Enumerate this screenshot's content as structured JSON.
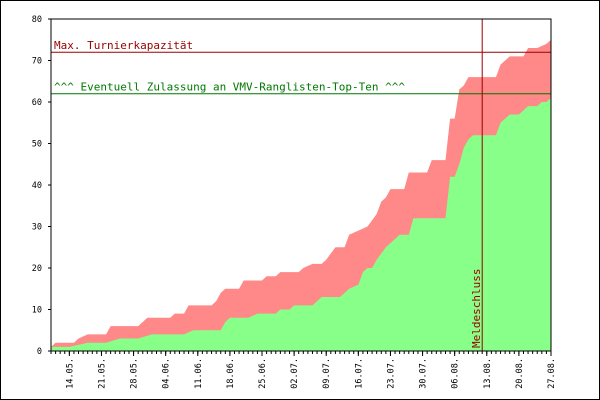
{
  "chart_data": {
    "type": "area",
    "title": "",
    "xlabel": "",
    "ylabel": "",
    "ylim": [
      0,
      80
    ],
    "grid": false,
    "legend": "none",
    "y_ticks": [
      0,
      10,
      20,
      30,
      40,
      50,
      60,
      70,
      80
    ],
    "x_ticks": [
      "14.05.",
      "21.05.",
      "28.05.",
      "04.06.",
      "11.06.",
      "18.06.",
      "25.06.",
      "02.07.",
      "09.07.",
      "16.07.",
      "23.07.",
      "30.07.",
      "06.08.",
      "13.08.",
      "20.08.",
      "27.08."
    ],
    "series": [
      {
        "role": "lower",
        "color": "#88ff88",
        "points": [
          [
            "10.05.",
            1
          ],
          [
            "14.05.",
            1
          ],
          [
            "18.05.",
            2
          ],
          [
            "22.05.",
            2
          ],
          [
            "25.05.",
            3
          ],
          [
            "29.05.",
            3
          ],
          [
            "01.06.",
            4
          ],
          [
            "08.06.",
            4
          ],
          [
            "10.06.",
            5
          ],
          [
            "16.06.",
            5
          ],
          [
            "17.06.",
            7
          ],
          [
            "18.06.",
            8
          ],
          [
            "22.06.",
            8
          ],
          [
            "24.06.",
            9
          ],
          [
            "28.06.",
            9
          ],
          [
            "29.06.",
            10
          ],
          [
            "01.07.",
            10
          ],
          [
            "02.07.",
            11
          ],
          [
            "06.07.",
            11
          ],
          [
            "08.07.",
            13
          ],
          [
            "12.07.",
            13
          ],
          [
            "14.07.",
            15
          ],
          [
            "16.07.",
            16
          ],
          [
            "17.07.",
            19
          ],
          [
            "18.07.",
            20
          ],
          [
            "19.07.",
            20
          ],
          [
            "20.07.",
            22
          ],
          [
            "22.07.",
            25
          ],
          [
            "24.07.",
            27
          ],
          [
            "25.07.",
            28
          ],
          [
            "27.07.",
            28
          ],
          [
            "28.07.",
            32
          ],
          [
            "04.08.",
            32
          ],
          [
            "05.08.",
            42
          ],
          [
            "06.08.",
            42
          ],
          [
            "07.08.",
            45
          ],
          [
            "08.08.",
            49
          ],
          [
            "09.08.",
            51
          ],
          [
            "10.08.",
            52
          ],
          [
            "13.08.",
            52
          ],
          [
            "15.08.",
            52
          ],
          [
            "16.08.",
            55
          ],
          [
            "17.08.",
            56
          ],
          [
            "18.08.",
            57
          ],
          [
            "20.08.",
            57
          ],
          [
            "22.08.",
            59
          ],
          [
            "24.08.",
            59
          ],
          [
            "25.08.",
            60
          ],
          [
            "26.08.",
            60
          ],
          [
            "27.08.",
            61
          ]
        ]
      },
      {
        "role": "upper",
        "color": "#ff8888",
        "points": [
          [
            "10.05.",
            1
          ],
          [
            "11.05.",
            2
          ],
          [
            "15.05.",
            2
          ],
          [
            "16.05.",
            3
          ],
          [
            "18.05.",
            4
          ],
          [
            "22.05.",
            4
          ],
          [
            "23.05.",
            6
          ],
          [
            "29.05.",
            6
          ],
          [
            "30.05.",
            7
          ],
          [
            "31.05.",
            8
          ],
          [
            "05.06.",
            8
          ],
          [
            "06.06.",
            9
          ],
          [
            "08.06.",
            9
          ],
          [
            "09.06.",
            11
          ],
          [
            "14.06.",
            11
          ],
          [
            "15.06.",
            12
          ],
          [
            "16.06.",
            14
          ],
          [
            "17.06.",
            15
          ],
          [
            "20.06.",
            15
          ],
          [
            "21.06.",
            17
          ],
          [
            "25.06.",
            17
          ],
          [
            "26.06.",
            18
          ],
          [
            "28.06.",
            18
          ],
          [
            "29.06.",
            19
          ],
          [
            "03.07.",
            19
          ],
          [
            "04.07.",
            20
          ],
          [
            "06.07.",
            21
          ],
          [
            "08.07.",
            21
          ],
          [
            "09.07.",
            22
          ],
          [
            "11.07.",
            25
          ],
          [
            "13.07.",
            25
          ],
          [
            "14.07.",
            28
          ],
          [
            "16.07.",
            29
          ],
          [
            "18.07.",
            30
          ],
          [
            "20.07.",
            33
          ],
          [
            "21.07.",
            36
          ],
          [
            "22.07.",
            37
          ],
          [
            "23.07.",
            39
          ],
          [
            "26.07.",
            39
          ],
          [
            "27.07.",
            43
          ],
          [
            "31.07.",
            43
          ],
          [
            "01.08.",
            46
          ],
          [
            "04.08.",
            46
          ],
          [
            "05.08.",
            56
          ],
          [
            "06.08.",
            56
          ],
          [
            "07.08.",
            63
          ],
          [
            "08.08.",
            64
          ],
          [
            "09.08.",
            66
          ],
          [
            "15.08.",
            66
          ],
          [
            "16.08.",
            69
          ],
          [
            "17.08.",
            70
          ],
          [
            "18.08.",
            71
          ],
          [
            "21.08.",
            71
          ],
          [
            "22.08.",
            73
          ],
          [
            "24.08.",
            73
          ],
          [
            "26.08.",
            74
          ],
          [
            "27.08.",
            75
          ]
        ]
      }
    ],
    "reference_lines": [
      {
        "orientation": "horizontal",
        "y": 72,
        "label": "Max. Turnierkapazität",
        "color": "#990000"
      },
      {
        "orientation": "horizontal",
        "y": 62,
        "label": "^^^ Eventuell Zulassung an VMV-Ranglisten-Top-Ten ^^^",
        "color": "#007700"
      },
      {
        "orientation": "vertical",
        "x": "12.08.",
        "label": "Meldeschluss",
        "color": "#990000"
      }
    ]
  }
}
